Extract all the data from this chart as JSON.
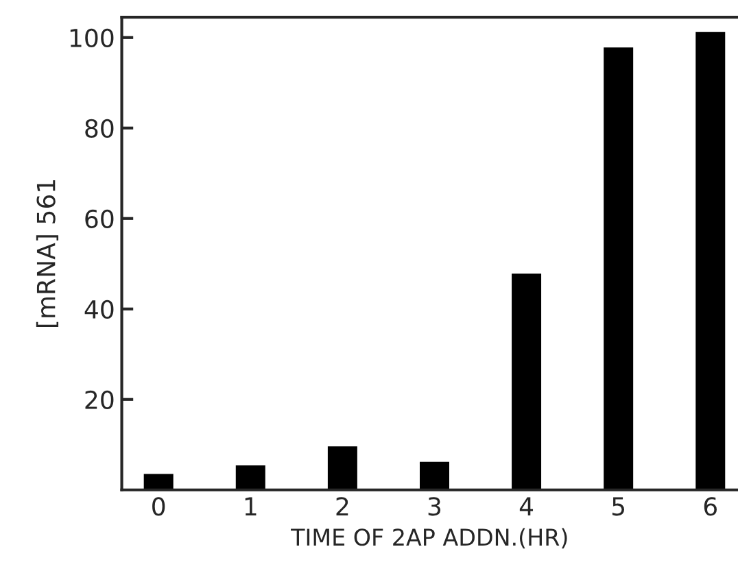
{
  "chart_data": {
    "type": "bar",
    "xlabel": "TIME OF 2AP ADDN.(HR)",
    "ylabel": "[mRNA] 561",
    "categories": [
      "0",
      "1",
      "2",
      "3",
      "4",
      "5",
      "6"
    ],
    "values": [
      3.3,
      5.2,
      9.4,
      6,
      47.6,
      97.6,
      101
    ],
    "color": "#000000",
    "ylim": [
      0,
      104.5
    ],
    "yticks": [
      20,
      40,
      60,
      80,
      100
    ],
    "grid": false
  }
}
